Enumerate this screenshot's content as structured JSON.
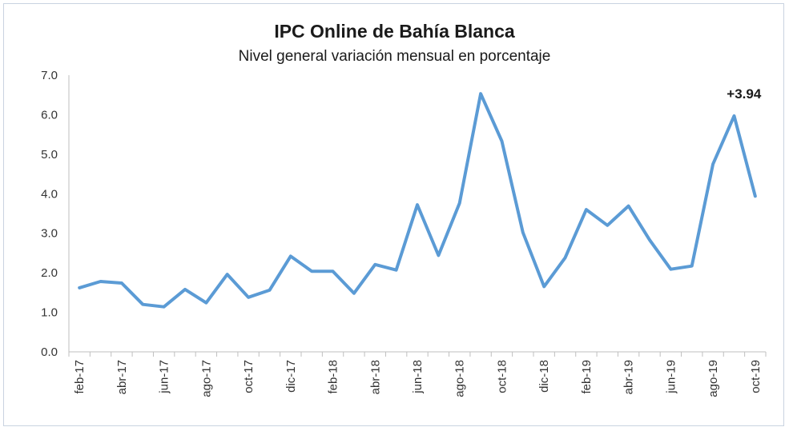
{
  "chart_data": {
    "type": "line",
    "title": "IPC Online de Bahía Blanca",
    "subtitle": "Nivel general variación mensual en porcentaje",
    "xlabel": "",
    "ylabel": "",
    "ylim": [
      0,
      7
    ],
    "yticks": [
      "0.0",
      "1.0",
      "2.0",
      "3.0",
      "4.0",
      "5.0",
      "6.0",
      "7.0"
    ],
    "grid": false,
    "legend": "none",
    "x": [
      "feb-17",
      "mar-17",
      "abr-17",
      "may-17",
      "jun-17",
      "jul-17",
      "ago-17",
      "sep-17",
      "oct-17",
      "nov-17",
      "dic-17",
      "ene-18",
      "feb-18",
      "mar-18",
      "abr-18",
      "may-18",
      "jun-18",
      "jul-18",
      "ago-18",
      "sep-18",
      "oct-18",
      "nov-18",
      "dic-18",
      "ene-19",
      "feb-19",
      "mar-19",
      "abr-19",
      "may-19",
      "jun-19",
      "jul-19",
      "ago-19",
      "sep-19",
      "oct-19"
    ],
    "tick_labels": [
      "feb-17",
      "abr-17",
      "jun-17",
      "ago-17",
      "oct-17",
      "dic-17",
      "feb-18",
      "abr-18",
      "jun-18",
      "ago-18",
      "oct-18",
      "dic-18",
      "feb-19",
      "abr-19",
      "jun-19",
      "ago-19",
      "oct-19"
    ],
    "series": [
      {
        "values": [
          1.62,
          1.78,
          1.74,
          1.2,
          1.14,
          1.58,
          1.24,
          1.96,
          1.38,
          1.56,
          2.42,
          2.04,
          2.04,
          1.48,
          2.21,
          2.07,
          3.72,
          2.44,
          3.76,
          6.53,
          5.33,
          3.02,
          1.65,
          2.38,
          3.6,
          3.2,
          3.69,
          2.83,
          2.09,
          2.17,
          4.75,
          5.97,
          3.94
        ],
        "color": "#5b9bd5"
      }
    ],
    "annotation": {
      "text": "+3.94",
      "target": "oct-19"
    }
  }
}
